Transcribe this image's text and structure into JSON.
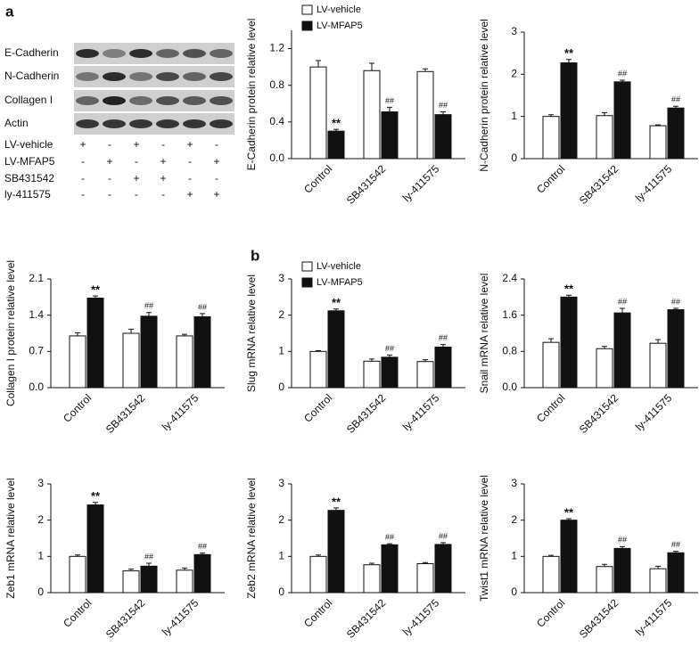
{
  "panel_labels": [
    "a",
    "b"
  ],
  "blot": {
    "rows": [
      "E-Cadherin",
      "N-Cadherin",
      "Collagen I",
      "Actin"
    ],
    "conditions": [
      {
        "name": "LV-vehicle",
        "signs": [
          "+",
          "-",
          "+",
          "-",
          "+",
          "-"
        ]
      },
      {
        "name": "LV-MFAP5",
        "signs": [
          "-",
          "+",
          "-",
          "+",
          "-",
          "+"
        ]
      },
      {
        "name": "SB431542",
        "signs": [
          "-",
          "-",
          "+",
          "+",
          "-",
          "-"
        ]
      },
      {
        "name": "ly-411575",
        "signs": [
          "-",
          "-",
          "-",
          "-",
          "+",
          "+"
        ]
      }
    ]
  },
  "chart_data": [
    {
      "type": "bar",
      "y_label": "E-Cadherin protein relative level",
      "legend": "above",
      "categories": [
        "Control",
        "SB431542",
        "ly-411575"
      ],
      "ylim": [
        0,
        1.4
      ],
      "yticks": [
        {
          "value": 0,
          "label": "0.0"
        },
        0.4,
        0.8,
        1.2
      ],
      "series": [
        {
          "name": "LV-vehicle",
          "color": "#ffffff",
          "values": [
            1.0,
            0.96,
            0.95
          ],
          "errors": [
            0.07,
            0.08,
            0.03
          ]
        },
        {
          "name": "LV-MFAP5",
          "color": "#111111",
          "values": [
            0.3,
            0.51,
            0.48
          ],
          "errors": [
            0.02,
            0.05,
            0.03
          ],
          "annotations": [
            "**",
            "##",
            "##"
          ]
        }
      ]
    },
    {
      "type": "bar",
      "y_label": "N-Cadherin protein relative level",
      "categories": [
        "Control",
        "SB431542",
        "ly-411575"
      ],
      "ylim": [
        0,
        3
      ],
      "yticks": [
        0,
        1,
        2,
        3
      ],
      "series": [
        {
          "color": "#ffffff",
          "values": [
            1.0,
            1.02,
            0.78
          ],
          "errors": [
            0.04,
            0.07,
            0.02
          ]
        },
        {
          "color": "#111111",
          "values": [
            2.27,
            1.82,
            1.2
          ],
          "errors": [
            0.08,
            0.04,
            0.04
          ],
          "annotations": [
            "**",
            "##",
            "##"
          ]
        }
      ]
    },
    {
      "type": "bar",
      "y_label": "Collagen I protein relative level",
      "categories": [
        "Control",
        "SB431542",
        "ly-411575"
      ],
      "ylim": [
        0,
        2.1
      ],
      "yticks": [
        {
          "value": 0,
          "label": "0.0"
        },
        0.7,
        1.4,
        2.1
      ],
      "series": [
        {
          "color": "#ffffff",
          "values": [
            1.0,
            1.05,
            1.0
          ],
          "errors": [
            0.06,
            0.08,
            0.03
          ]
        },
        {
          "color": "#111111",
          "values": [
            1.73,
            1.38,
            1.37
          ],
          "errors": [
            0.04,
            0.07,
            0.06
          ],
          "annotations": [
            "**",
            "##",
            "##"
          ]
        }
      ]
    },
    {
      "type": "bar",
      "y_label": "Slug mRNA relative level",
      "legend": "upper left",
      "categories": [
        "Control",
        "SB431542",
        "ly-411575"
      ],
      "ylim": [
        0,
        3
      ],
      "yticks": [
        0,
        1,
        2,
        3
      ],
      "series": [
        {
          "name": "LV-vehicle",
          "color": "#ffffff",
          "values": [
            1.0,
            0.73,
            0.72
          ],
          "errors": [
            0.02,
            0.06,
            0.05
          ]
        },
        {
          "name": "LV-MFAP5",
          "color": "#111111",
          "values": [
            2.12,
            0.84,
            1.12
          ],
          "errors": [
            0.05,
            0.06,
            0.07
          ],
          "annotations": [
            "**",
            "##",
            "##"
          ]
        }
      ]
    },
    {
      "type": "bar",
      "y_label": "Snail mRNA relative level",
      "categories": [
        "Control",
        "SB431542",
        "ly-411575"
      ],
      "ylim": [
        0,
        2.4
      ],
      "yticks": [
        {
          "value": 0,
          "label": "0.0"
        },
        0.8,
        1.6,
        2.4
      ],
      "series": [
        {
          "color": "#ffffff",
          "values": [
            1.0,
            0.86,
            0.98
          ],
          "errors": [
            0.08,
            0.05,
            0.08
          ]
        },
        {
          "color": "#111111",
          "values": [
            2.0,
            1.65,
            1.72
          ],
          "errors": [
            0.04,
            0.1,
            0.03
          ],
          "annotations": [
            "**",
            "##",
            "##"
          ]
        }
      ]
    },
    {
      "type": "bar",
      "y_label": "Zeb1 mRNA relative level",
      "categories": [
        "Control",
        "SB431542",
        "ly-411575"
      ],
      "ylim": [
        0,
        3
      ],
      "yticks": [
        0,
        1,
        2,
        3
      ],
      "series": [
        {
          "color": "#ffffff",
          "values": [
            1.0,
            0.6,
            0.62
          ],
          "errors": [
            0.04,
            0.05,
            0.06
          ]
        },
        {
          "color": "#111111",
          "values": [
            2.42,
            0.73,
            1.05
          ],
          "errors": [
            0.07,
            0.08,
            0.04
          ],
          "annotations": [
            "**",
            "##",
            "##"
          ]
        }
      ]
    },
    {
      "type": "bar",
      "y_label": "Zeb2 mRNA relative level",
      "categories": [
        "Control",
        "SB431542",
        "ly-411575"
      ],
      "ylim": [
        0,
        3
      ],
      "yticks": [
        0,
        1,
        2,
        3
      ],
      "series": [
        {
          "color": "#ffffff",
          "values": [
            1.0,
            0.77,
            0.8
          ],
          "errors": [
            0.04,
            0.04,
            0.03
          ]
        },
        {
          "color": "#111111",
          "values": [
            2.27,
            1.32,
            1.33
          ],
          "errors": [
            0.07,
            0.03,
            0.05
          ],
          "annotations": [
            "**",
            "##",
            "##"
          ]
        }
      ]
    },
    {
      "type": "bar",
      "y_label": "Twist1 mRNA relative level",
      "categories": [
        "Control",
        "SB431542",
        "ly-411575"
      ],
      "ylim": [
        0,
        3
      ],
      "yticks": [
        0,
        1,
        2,
        3
      ],
      "series": [
        {
          "color": "#ffffff",
          "values": [
            1.0,
            0.72,
            0.66
          ],
          "errors": [
            0.03,
            0.06,
            0.07
          ]
        },
        {
          "color": "#111111",
          "values": [
            2.0,
            1.22,
            1.1
          ],
          "errors": [
            0.04,
            0.05,
            0.04
          ],
          "annotations": [
            "**",
            "##",
            "##"
          ]
        }
      ]
    }
  ]
}
